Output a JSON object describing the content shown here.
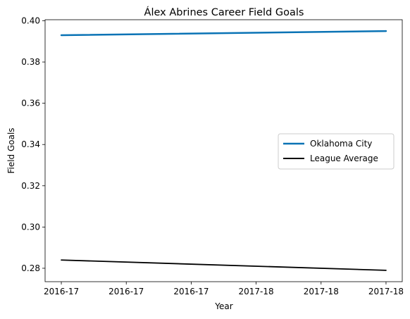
{
  "chart_data": {
    "type": "line",
    "title": "Álex Abrines Career Field Goals",
    "xlabel": "Year",
    "ylabel": "Field Goals",
    "categories": [
      "2016-17",
      "2016-17",
      "2016-17",
      "2017-18",
      "2017-18",
      "2017-18"
    ],
    "series": [
      {
        "name": "Oklahoma City",
        "color": "#0a73b5",
        "x": [
          0,
          5
        ],
        "values": [
          0.393,
          0.395
        ]
      },
      {
        "name": "League Average",
        "color": "#000000",
        "x": [
          0,
          5
        ],
        "values": [
          0.284,
          0.279
        ]
      }
    ],
    "yticks": [
      "0.28",
      "0.30",
      "0.32",
      "0.34",
      "0.36",
      "0.38",
      "0.40"
    ],
    "ylim": [
      0.2735,
      0.4005
    ],
    "xlim": [
      -0.25,
      5.25
    ],
    "grid": false,
    "legend_position": "center-right"
  }
}
